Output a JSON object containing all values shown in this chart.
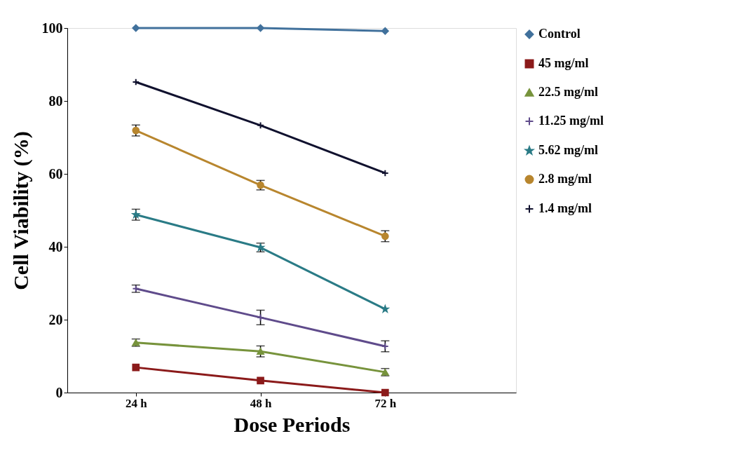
{
  "chart_data": {
    "type": "line",
    "xlabel": "Dose Periods",
    "ylabel": "Cell Viability (%)",
    "categories": [
      "24 h",
      "48 h",
      "72 h"
    ],
    "ylim": [
      0,
      100
    ],
    "yticks": [
      0,
      20,
      40,
      60,
      80,
      100
    ],
    "grid": false,
    "legend": "right",
    "series": [
      {
        "name": "Control",
        "color": "#41719c",
        "marker": "diamond",
        "values": [
          100,
          100,
          99.2
        ]
      },
      {
        "name": "45 mg/ml",
        "color": "#8b1a1a",
        "marker": "square",
        "values": [
          6.9,
          3.3,
          0
        ]
      },
      {
        "name": "22.5 mg/ml",
        "color": "#77933c",
        "marker": "triangle",
        "values": [
          13.7,
          11.3,
          5.6
        ],
        "errors": [
          1,
          1.5,
          1
        ]
      },
      {
        "name": "11.25 mg/ml",
        "color": "#5f4b8b",
        "marker": "cross",
        "values": [
          28.5,
          20.6,
          12.7
        ],
        "errors": [
          1,
          2,
          1.5
        ]
      },
      {
        "name": "5.62 mg/ml",
        "color": "#2a7b86",
        "marker": "star",
        "values": [
          48.8,
          39.8,
          22.9
        ],
        "errors": [
          1.5,
          1.2,
          null
        ]
      },
      {
        "name": "2.8 mg/ml",
        "color": "#b8862e",
        "marker": "circle",
        "values": [
          71.9,
          56.9,
          42.9
        ],
        "errors": [
          1.5,
          1.3,
          1.5
        ]
      },
      {
        "name": "1.4 mg/ml",
        "color": "#10112e",
        "marker": "cross",
        "values": [
          85.2,
          73.3,
          60.2
        ]
      }
    ]
  }
}
